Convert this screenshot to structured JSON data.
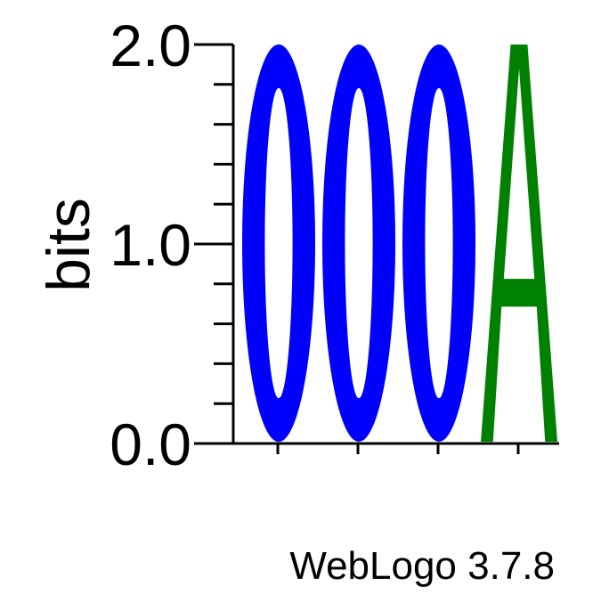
{
  "chart_data": {
    "type": "sequence-logo",
    "ylabel": "bits",
    "ylim": [
      0,
      2.0
    ],
    "major_ticks": [
      0.0,
      1.0,
      2.0
    ],
    "tick_labels": [
      "0.0",
      "1.0",
      "2.0"
    ],
    "minor_tick_step": 0.2,
    "positions": [
      {
        "position": 1,
        "letters": [
          {
            "letter": "C",
            "bits": 2.0,
            "color": "#0000ff"
          }
        ]
      },
      {
        "position": 2,
        "letters": [
          {
            "letter": "C",
            "bits": 2.0,
            "color": "#0000ff"
          }
        ]
      },
      {
        "position": 3,
        "letters": [
          {
            "letter": "C",
            "bits": 2.0,
            "color": "#0000ff"
          }
        ]
      },
      {
        "position": 4,
        "letters": [
          {
            "letter": "A",
            "bits": 2.0,
            "color": "#008000"
          }
        ]
      }
    ],
    "footer": "WebLogo 3.7.8"
  }
}
